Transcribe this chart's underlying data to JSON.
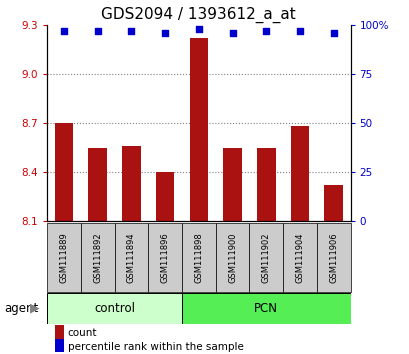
{
  "title": "GDS2094 / 1393612_a_at",
  "samples": [
    "GSM111889",
    "GSM111892",
    "GSM111894",
    "GSM111896",
    "GSM111898",
    "GSM111900",
    "GSM111902",
    "GSM111904",
    "GSM111906"
  ],
  "bar_values": [
    8.7,
    8.55,
    8.56,
    8.4,
    9.22,
    8.55,
    8.55,
    8.68,
    8.32
  ],
  "percentile_values": [
    97,
    97,
    97,
    96,
    98,
    96,
    97,
    97,
    96
  ],
  "ylim_left": [
    8.1,
    9.3
  ],
  "ylim_right": [
    0,
    100
  ],
  "yticks_left": [
    8.1,
    8.4,
    8.7,
    9.0,
    9.3
  ],
  "yticks_right": [
    0,
    25,
    50,
    75,
    100
  ],
  "grid_lines": [
    9.0,
    8.7,
    8.4
  ],
  "bar_color": "#aa1111",
  "dot_color": "#0000cc",
  "bar_bottom": 8.1,
  "n_control": 4,
  "n_pcn": 5,
  "control_label": "control",
  "pcn_label": "PCN",
  "agent_label": "agent",
  "legend_count_label": "count",
  "legend_pct_label": "percentile rank within the sample",
  "control_color": "#ccffcc",
  "pcn_color": "#55ee55",
  "sample_bg_color": "#cccccc",
  "title_fontsize": 11,
  "axis_label_color_left": "#cc0000",
  "axis_label_color_right": "#0000cc",
  "tick_fontsize": 7.5,
  "bar_width": 0.55
}
